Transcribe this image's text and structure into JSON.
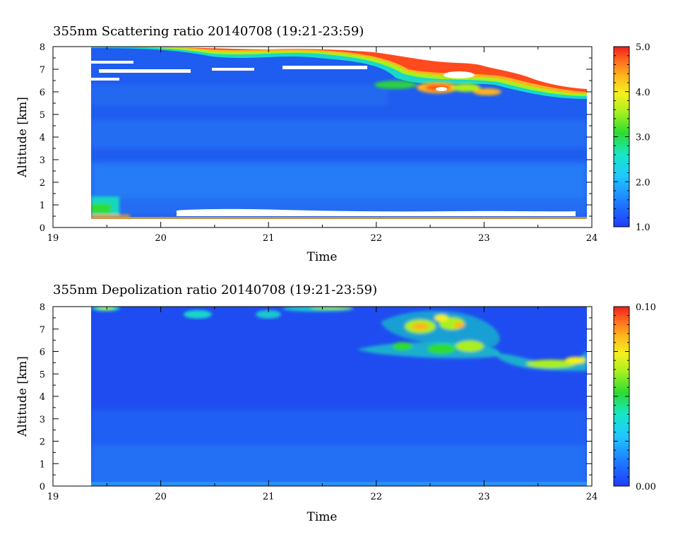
{
  "chart_data": [
    {
      "type": "heatmap",
      "title": "355nm Scattering ratio  20140708 (19:21-23:59)",
      "xlabel": "Time",
      "ylabel": "Altitude [km]",
      "xlim": [
        19,
        24
      ],
      "ylim": [
        0,
        8
      ],
      "x_ticks": [
        "19",
        "20",
        "21",
        "22",
        "23",
        "24"
      ],
      "y_ticks": [
        "0",
        "1",
        "2",
        "3",
        "4",
        "5",
        "6",
        "7",
        "8"
      ],
      "colorbar": {
        "min": 1.0,
        "max": 5.0,
        "ticks": [
          "1.0",
          "2.0",
          "3.0",
          "4.0",
          "5.0"
        ]
      },
      "data_start_time": 19.35,
      "data_end_time": 23.98,
      "features": [
        {
          "kind": "cloud_top_edge",
          "x": [
            19.35,
            19.8,
            20.3,
            21.0,
            21.5,
            22.0,
            22.5,
            23.0,
            23.5,
            23.98
          ],
          "y": [
            8.0,
            7.7,
            7.6,
            7.7,
            7.6,
            7.3,
            6.8,
            6.2,
            5.5,
            5.5
          ]
        },
        {
          "kind": "aerosol_layer",
          "x": [
            19.35,
            19.7
          ],
          "y": [
            0.4,
            1.2
          ],
          "value": 2.3
        }
      ]
    },
    {
      "type": "heatmap",
      "title": "355nm Depolization ratio  20140708 (19:21-23:59)",
      "xlabel": "Time",
      "ylabel": "Altitude [km]",
      "xlim": [
        19,
        24
      ],
      "ylim": [
        0,
        8
      ],
      "x_ticks": [
        "19",
        "20",
        "21",
        "22",
        "23",
        "24"
      ],
      "y_ticks": [
        "0",
        "1",
        "2",
        "3",
        "4",
        "5",
        "6",
        "7",
        "8"
      ],
      "colorbar": {
        "min": 0.0,
        "max": 0.1,
        "ticks": [
          "0.00",
          "0.10"
        ]
      },
      "data_start_time": 19.35,
      "data_end_time": 23.98,
      "features": [
        {
          "kind": "cirrus_patch",
          "x": [
            22.3,
            22.9
          ],
          "y": [
            6.9,
            7.5
          ],
          "value": 0.075
        },
        {
          "kind": "cirrus_patch",
          "x": [
            22.2,
            23.1
          ],
          "y": [
            5.9,
            6.4
          ],
          "value": 0.055
        },
        {
          "kind": "cirrus_patch",
          "x": [
            23.4,
            24.0
          ],
          "y": [
            5.2,
            5.8
          ],
          "value": 0.05
        }
      ]
    }
  ]
}
